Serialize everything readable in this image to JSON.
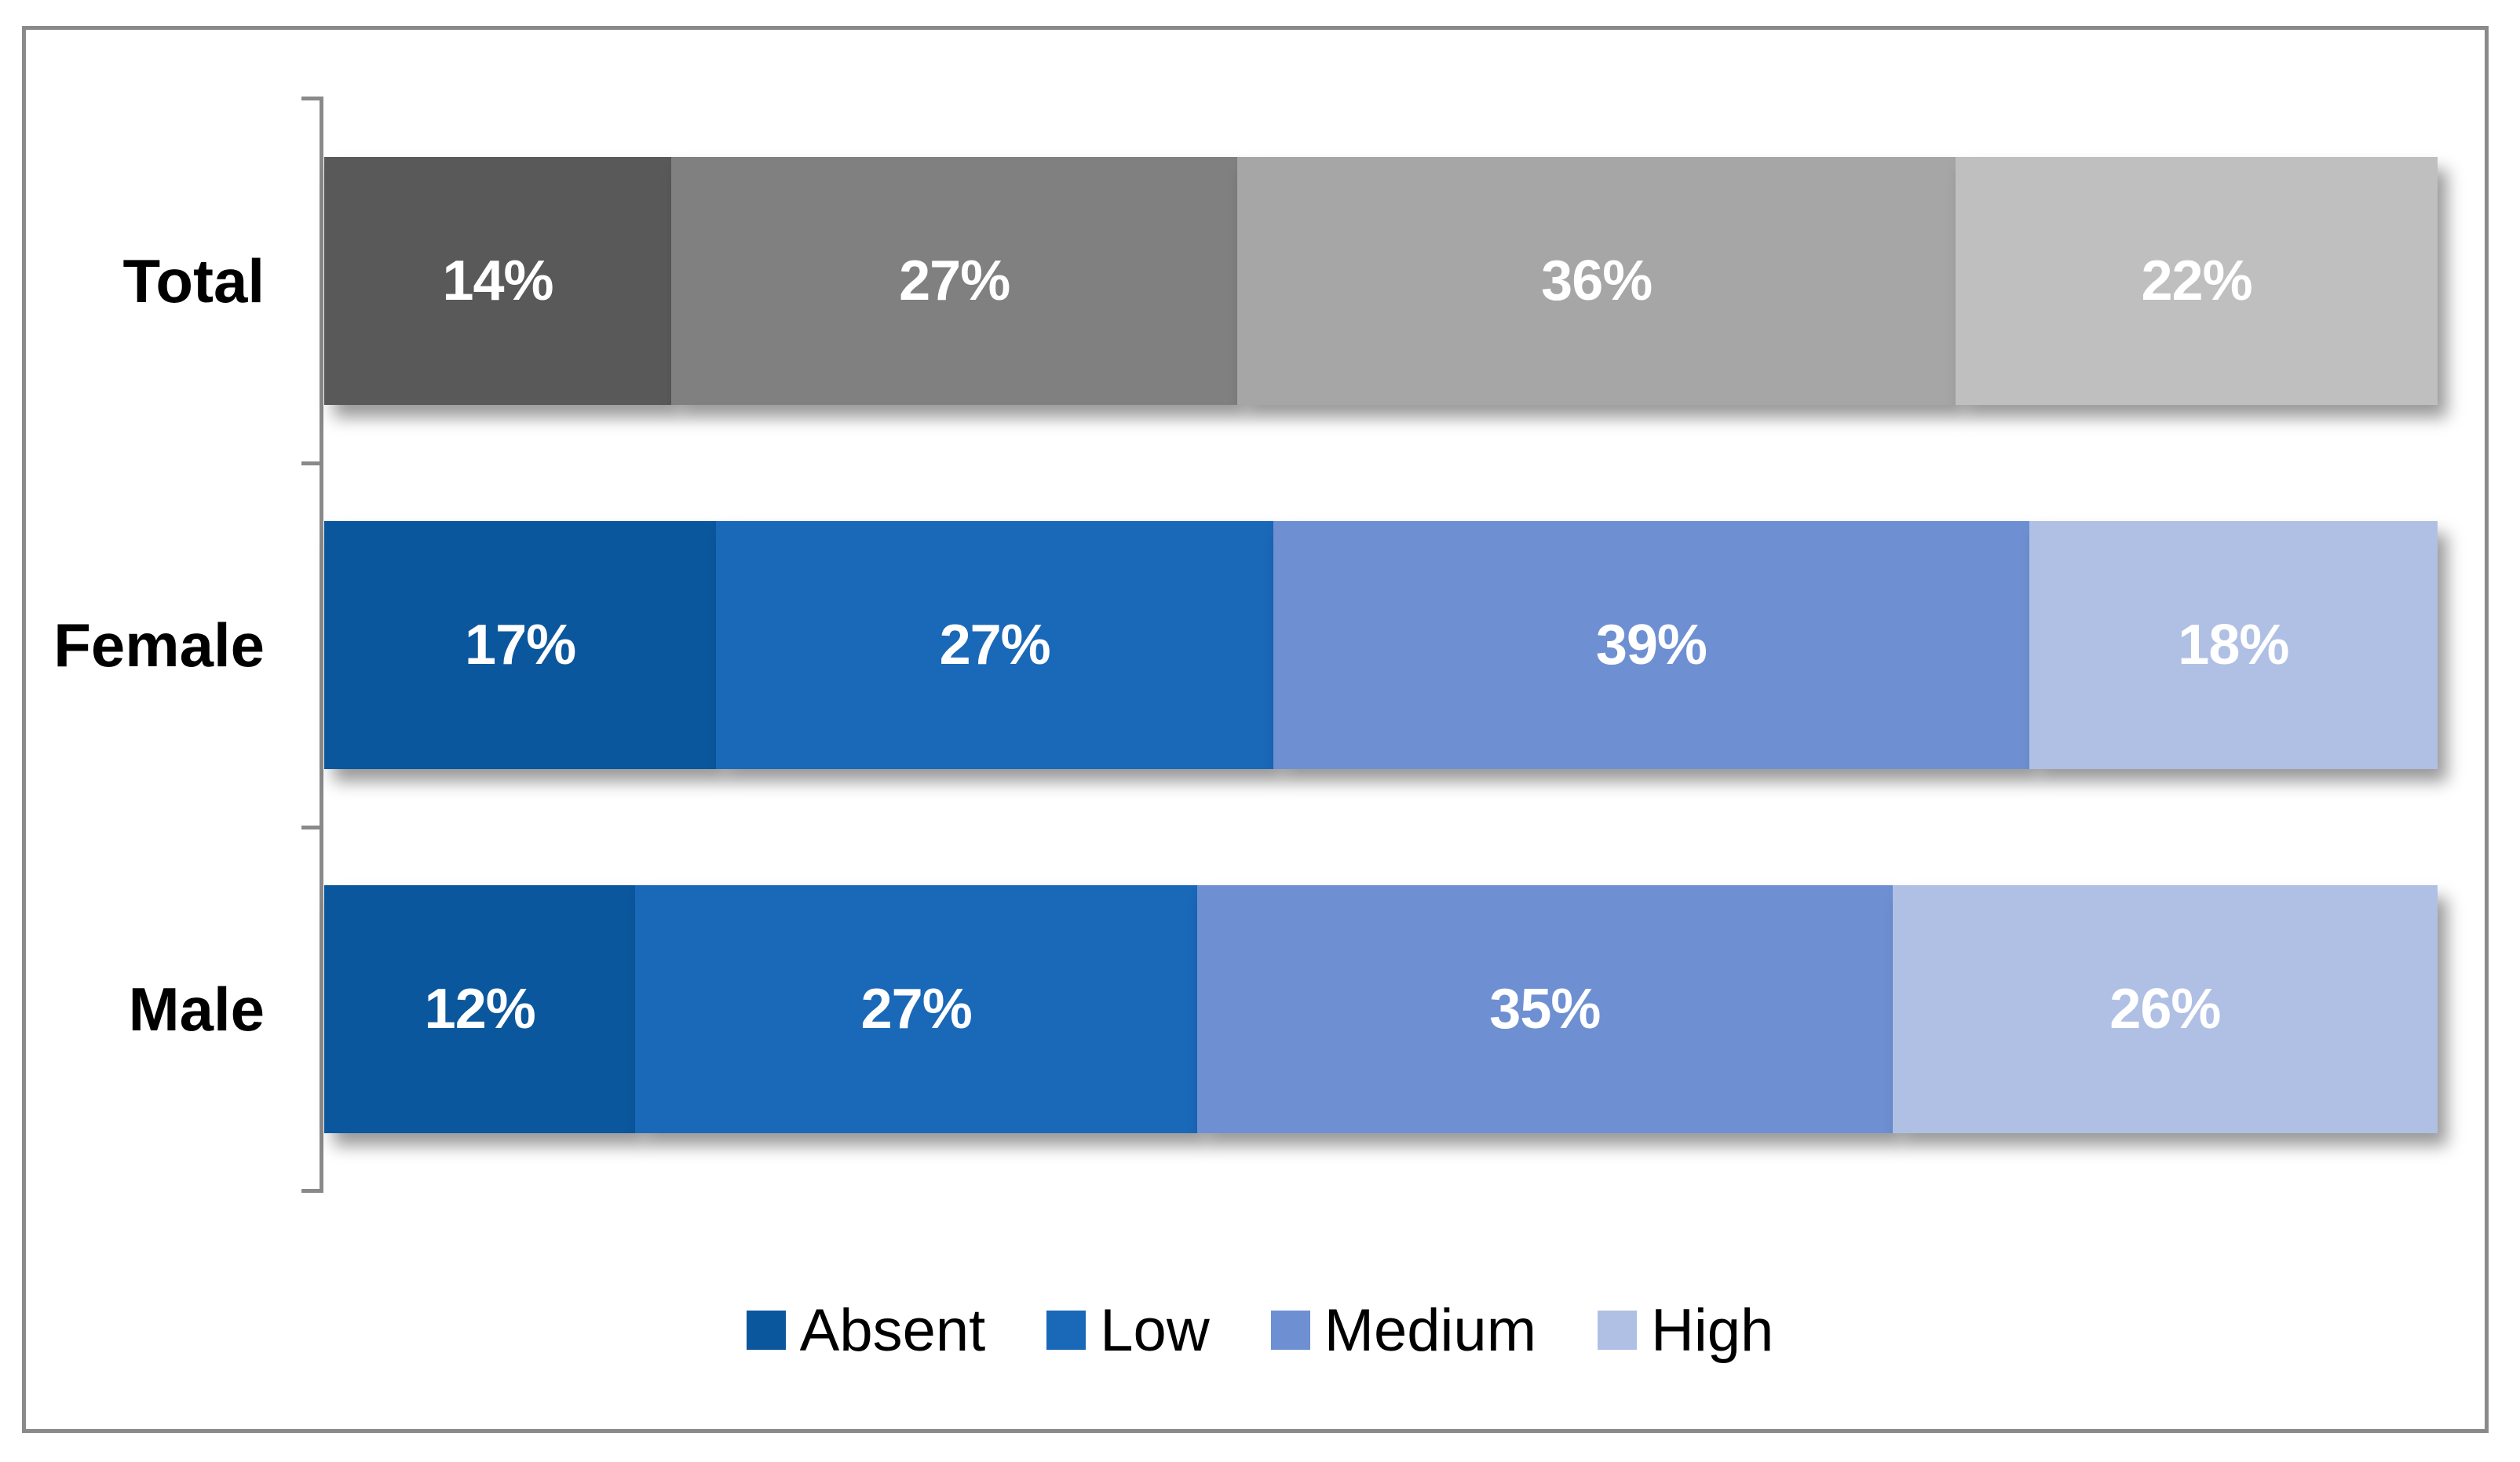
{
  "chart_data": {
    "type": "bar",
    "variant": "100-percent-stacked-horizontal",
    "categories": [
      "Total",
      "Female",
      "Male"
    ],
    "series": [
      {
        "name": "Absent",
        "values": [
          14,
          17,
          12
        ]
      },
      {
        "name": "Low",
        "values": [
          27,
          27,
          27
        ]
      },
      {
        "name": "Medium",
        "values": [
          36,
          39,
          35
        ]
      },
      {
        "name": "High",
        "values": [
          22,
          18,
          26
        ]
      }
    ],
    "value_unit": "%",
    "xlim": [
      0,
      100
    ],
    "grid": false,
    "title": "",
    "legend_position": "bottom",
    "legend_entries": [
      "Absent",
      "Low",
      "Medium",
      "High"
    ]
  },
  "palette": {
    "total_grays": [
      "#595959",
      "#808080",
      "#A6A6A6",
      "#BFBFBF"
    ],
    "blues": [
      "#0B579D",
      "#1A68B8",
      "#6E90D2",
      "#B0C0E4"
    ],
    "axis_gray": "#8A8A8A",
    "frame_gray": "#8A8A8A",
    "value_label_color": "#FFFFFF",
    "text_color": "#000000"
  },
  "rows": [
    {
      "label": "Total",
      "segments": [
        {
          "series": "Absent",
          "text": "14%",
          "value": 14,
          "color": "#595959"
        },
        {
          "series": "Low",
          "text": "27%",
          "value": 27,
          "color": "#808080"
        },
        {
          "series": "Medium",
          "text": "36%",
          "value": 36,
          "color": "#A6A6A6"
        },
        {
          "series": "High",
          "text": "22%",
          "value": 22,
          "color": "#BFBFBF"
        }
      ]
    },
    {
      "label": "Female",
      "segments": [
        {
          "series": "Absent",
          "text": "17%",
          "value": 17,
          "color": "#0B579D"
        },
        {
          "series": "Low",
          "text": "27%",
          "value": 27,
          "color": "#1A68B8"
        },
        {
          "series": "Medium",
          "text": "39%",
          "value": 39,
          "color": "#6E90D2"
        },
        {
          "series": "High",
          "text": "18%",
          "value": 18,
          "color": "#B0C0E4"
        }
      ]
    },
    {
      "label": "Male",
      "segments": [
        {
          "series": "Absent",
          "text": "12%",
          "value": 12,
          "color": "#0B579D"
        },
        {
          "series": "Low",
          "text": "27%",
          "value": 27,
          "color": "#1A68B8"
        },
        {
          "series": "Medium",
          "text": "35%",
          "value": 35,
          "color": "#6E90D2"
        },
        {
          "series": "High",
          "text": "26%",
          "value": 26,
          "color": "#B0C0E4"
        }
      ]
    }
  ],
  "legend": {
    "items": [
      {
        "label": "Absent",
        "color": "#0B579D"
      },
      {
        "label": "Low",
        "color": "#1A68B8"
      },
      {
        "label": "Medium",
        "color": "#6E90D2"
      },
      {
        "label": "High",
        "color": "#B0C0E4"
      }
    ]
  }
}
